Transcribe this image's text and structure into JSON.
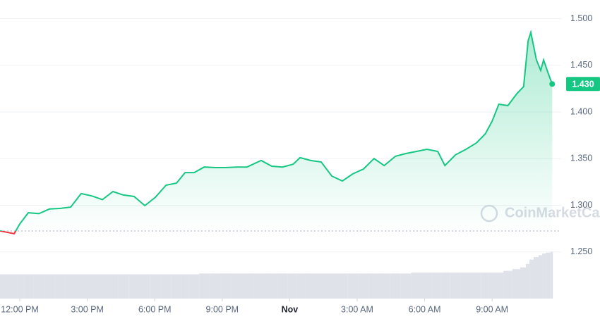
{
  "chart_data": {
    "type": "area",
    "x": [
      -0.88,
      -0.25,
      0,
      0.38,
      0.85,
      1.32,
      1.79,
      2.26,
      2.73,
      3.2,
      3.67,
      4.14,
      4.6,
      5.08,
      5.56,
      6.03,
      6.5,
      6.97,
      7.35,
      7.75,
      8.2,
      8.7,
      9.16,
      9.64,
      10.1,
      10.73,
      11.2,
      11.68,
      12.15,
      12.46,
      12.93,
      13.4,
      13.87,
      14.34,
      14.8,
      15.28,
      15.75,
      16.2,
      16.7,
      17.17,
      17.64,
      18.1,
      18.58,
      18.9,
      19.37,
      19.84,
      20.3,
      20.7,
      21,
      21.3,
      21.7,
      22.1,
      22.4,
      22.6,
      22.72,
      22.97,
      23.16,
      23.29,
      23.48,
      23.67
    ],
    "values": [
      1.2725,
      1.2695,
      1.28,
      1.292,
      1.291,
      1.296,
      1.2966,
      1.298,
      1.3125,
      1.31,
      1.306,
      1.3147,
      1.311,
      1.3094,
      1.2996,
      1.3087,
      1.3215,
      1.3238,
      1.335,
      1.335,
      1.341,
      1.3404,
      1.3404,
      1.341,
      1.341,
      1.348,
      1.3419,
      1.341,
      1.344,
      1.351,
      1.348,
      1.3464,
      1.3313,
      1.326,
      1.3336,
      1.3389,
      1.35,
      1.3426,
      1.3525,
      1.3555,
      1.3577,
      1.36,
      1.3577,
      1.3426,
      1.354,
      1.36,
      1.3668,
      1.3766,
      1.3902,
      1.4083,
      1.4068,
      1.4196,
      1.4272,
      1.4762,
      1.4853,
      1.4558,
      1.4445,
      1.4558,
      1.4423,
      1.43
    ],
    "volume": [
      28,
      28,
      28,
      28,
      28,
      28,
      28,
      28,
      28,
      28,
      28,
      28,
      28,
      28,
      28,
      28,
      28,
      28,
      28,
      28,
      29,
      29,
      29,
      29,
      29,
      29,
      29,
      29,
      29,
      29,
      29,
      29,
      29,
      29,
      29,
      29,
      29,
      29,
      29,
      29,
      30,
      30,
      30,
      30,
      30,
      30,
      30,
      30,
      30,
      30,
      32,
      34,
      36,
      40,
      45,
      48,
      50,
      52,
      53,
      54
    ],
    "color": "#16c784",
    "below_color": "#ea3943",
    "open_price": 1.2725,
    "last_price": {
      "value": 1.43,
      "label": "1.430"
    },
    "xlim": [
      -0.88,
      24.07
    ],
    "ylim": [
      1.2,
      1.52
    ],
    "volume_lim": [
      0,
      100
    ],
    "xticks": [
      {
        "value": 0,
        "label": "12:00 PM"
      },
      {
        "value": 3,
        "label": "3:00 PM"
      },
      {
        "value": 6,
        "label": "6:00 PM"
      },
      {
        "value": 9,
        "label": "9:00 PM"
      },
      {
        "value": 12,
        "label": "Nov"
      },
      {
        "value": 15,
        "label": "3:00 AM"
      },
      {
        "value": 18,
        "label": "6:00 AM"
      },
      {
        "value": 21,
        "label": "9:00 AM"
      }
    ],
    "yticks": [
      {
        "value": 1.25,
        "label": "1.250"
      },
      {
        "value": 1.3,
        "label": "1.300"
      },
      {
        "value": 1.35,
        "label": "1.350"
      },
      {
        "value": 1.4,
        "label": "1.400"
      },
      {
        "value": 1.45,
        "label": "1.450"
      },
      {
        "value": 1.5,
        "label": "1.500"
      }
    ],
    "grid": true,
    "watermark": "CoinMarketCap"
  }
}
